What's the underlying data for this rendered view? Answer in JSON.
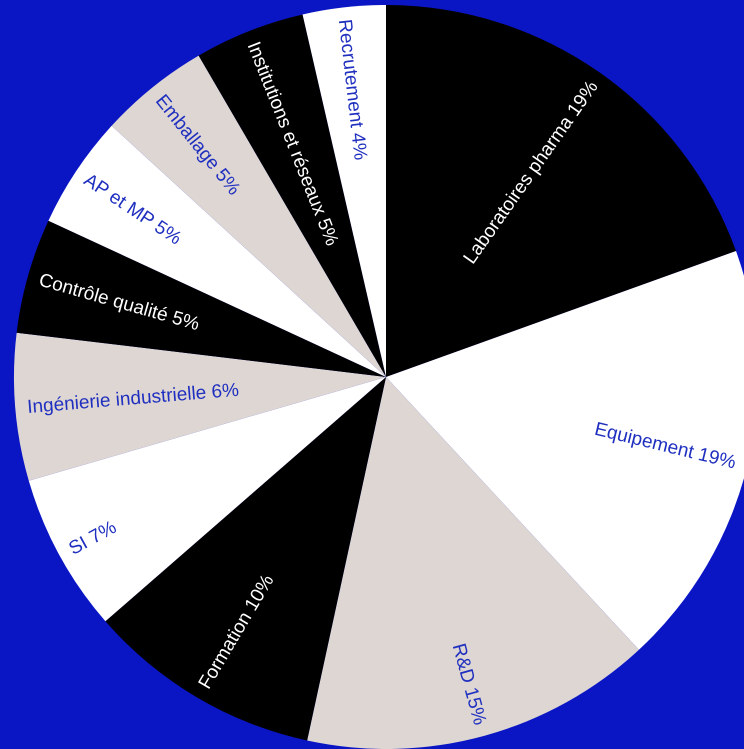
{
  "chart_data": {
    "type": "pie",
    "colors": {
      "background": "#0a16c4",
      "black": "#000000",
      "white": "#ffffff",
      "grey": "#ddd6d3",
      "label_dark": "#1f2fbf",
      "label_light": "#ffffff"
    },
    "slices": [
      {
        "label": "Laboratoires pharma 19%",
        "value": 19.5,
        "fill": "black",
        "text": "label_light"
      },
      {
        "label": "Equipement 19%",
        "value": 18.6,
        "fill": "white",
        "text": "label_dark"
      },
      {
        "label": "R&D 15%",
        "value": 15.3,
        "fill": "grey",
        "text": "label_dark"
      },
      {
        "label": "Formation 10%",
        "value": 10.2,
        "fill": "black",
        "text": "label_light"
      },
      {
        "label": "SI 7%",
        "value": 6.9,
        "fill": "white",
        "text": "label_dark"
      },
      {
        "label": "Ingénierie industrielle 6%",
        "value": 6.4,
        "fill": "grey",
        "text": "label_dark"
      },
      {
        "label": "Contrôle qualité 5%",
        "value": 5.0,
        "fill": "black",
        "text": "label_light"
      },
      {
        "label": "AP et MP 5%",
        "value": 4.9,
        "fill": "white",
        "text": "label_dark"
      },
      {
        "label": "Emballage 5%",
        "value": 4.8,
        "fill": "grey",
        "text": "label_dark"
      },
      {
        "label": "Institutions et réseaux 5%",
        "value": 4.8,
        "fill": "black",
        "text": "label_light"
      },
      {
        "label": "Recrutement 4%",
        "value": 3.6,
        "fill": "white",
        "text": "label_dark"
      }
    ]
  }
}
